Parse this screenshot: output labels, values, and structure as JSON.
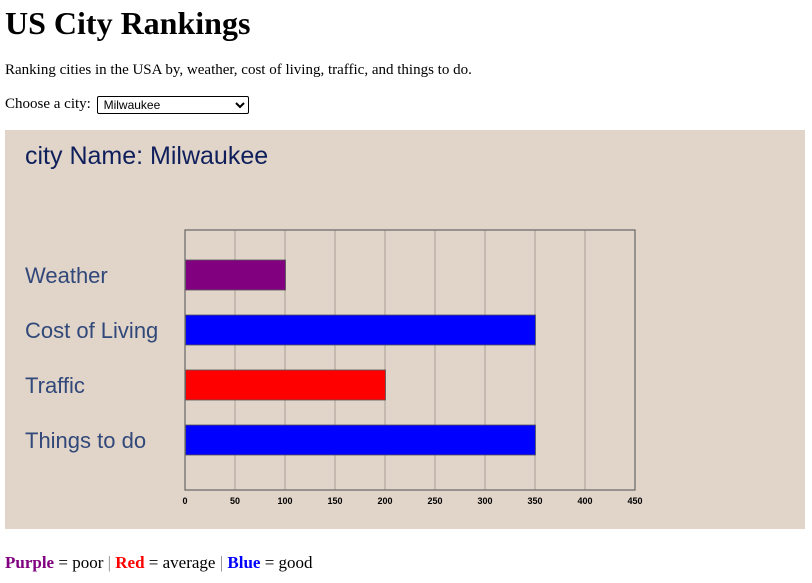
{
  "page": {
    "title": "US City Rankings",
    "intro": "Ranking cities in the USA by, weather, cost of living, traffic, and things to do."
  },
  "chooser": {
    "label": "Choose a city:",
    "selected": "Milwaukee"
  },
  "panel": {
    "city_label": "city Name: Milwaukee",
    "colors": {
      "background": "#e1d4c8",
      "title": "#0e1f5b",
      "label": "#31487a"
    }
  },
  "legend": {
    "items": [
      {
        "name": "Purple",
        "meaning": "= poor",
        "color": "#800080"
      },
      {
        "name": "Red",
        "meaning": "= average",
        "color": "#ff0000"
      },
      {
        "name": "Blue",
        "meaning": "= good",
        "color": "#0000ff"
      }
    ],
    "separator": "|"
  },
  "chart_data": {
    "type": "bar",
    "orientation": "horizontal",
    "categories": [
      "Weather",
      "Cost of Living",
      "Traffic",
      "Things to do"
    ],
    "values": [
      100,
      350,
      200,
      350
    ],
    "colors": [
      "#800080",
      "#0000ff",
      "#ff0000",
      "#0000ff"
    ],
    "xlim": [
      0,
      450
    ],
    "xticks": [
      0,
      50,
      100,
      150,
      200,
      250,
      300,
      350,
      400,
      450
    ],
    "grid": true
  }
}
